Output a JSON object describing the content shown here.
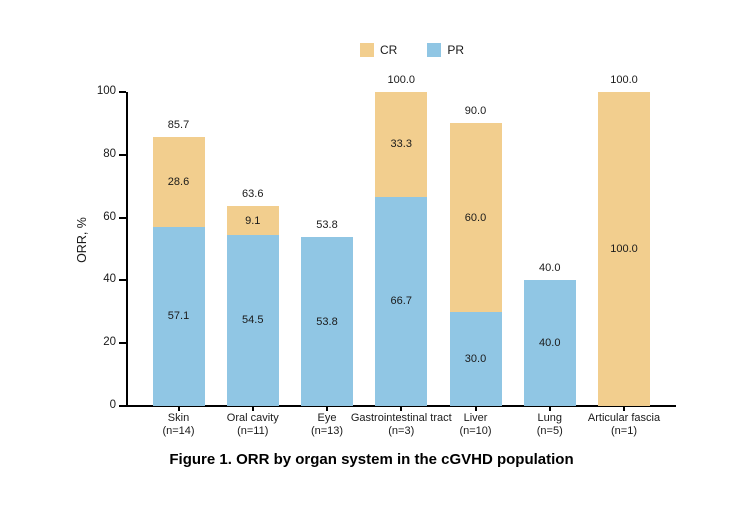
{
  "caption": "Figure 1. ORR by organ system in the cGVHD population",
  "colors": {
    "cr": "#F2CE8E",
    "pr": "#90C6E4",
    "axis": "#000000",
    "text": "#1A1A1A"
  },
  "chart_data": {
    "type": "bar",
    "stacked": true,
    "title": "",
    "xlabel": "",
    "ylabel": "ORR, %",
    "ylim": [
      0,
      100
    ],
    "yticks": [
      0,
      20,
      40,
      60,
      80,
      100
    ],
    "grid": false,
    "legend": [
      "CR",
      "PR"
    ],
    "legend_position": "top",
    "categories": [
      "Skin",
      "Oral cavity",
      "Eye",
      "Gastrointestinal tract",
      "Liver",
      "Lung",
      "Articular fascia"
    ],
    "category_sublabels": [
      "(n=14)",
      "(n=11)",
      "(n=13)",
      "(n=3)",
      "(n=10)",
      "(n=5)",
      "(n=1)"
    ],
    "series": [
      {
        "name": "PR",
        "color": "#90C6E4",
        "values": [
          57.1,
          54.5,
          53.8,
          66.7,
          30.0,
          40.0,
          0
        ]
      },
      {
        "name": "CR",
        "color": "#F2CE8E",
        "values": [
          28.6,
          9.1,
          0,
          33.3,
          60.0,
          0,
          100.0
        ]
      }
    ],
    "totals": [
      85.7,
      63.6,
      53.8,
      100.0,
      90.0,
      40.0,
      100.0
    ]
  }
}
